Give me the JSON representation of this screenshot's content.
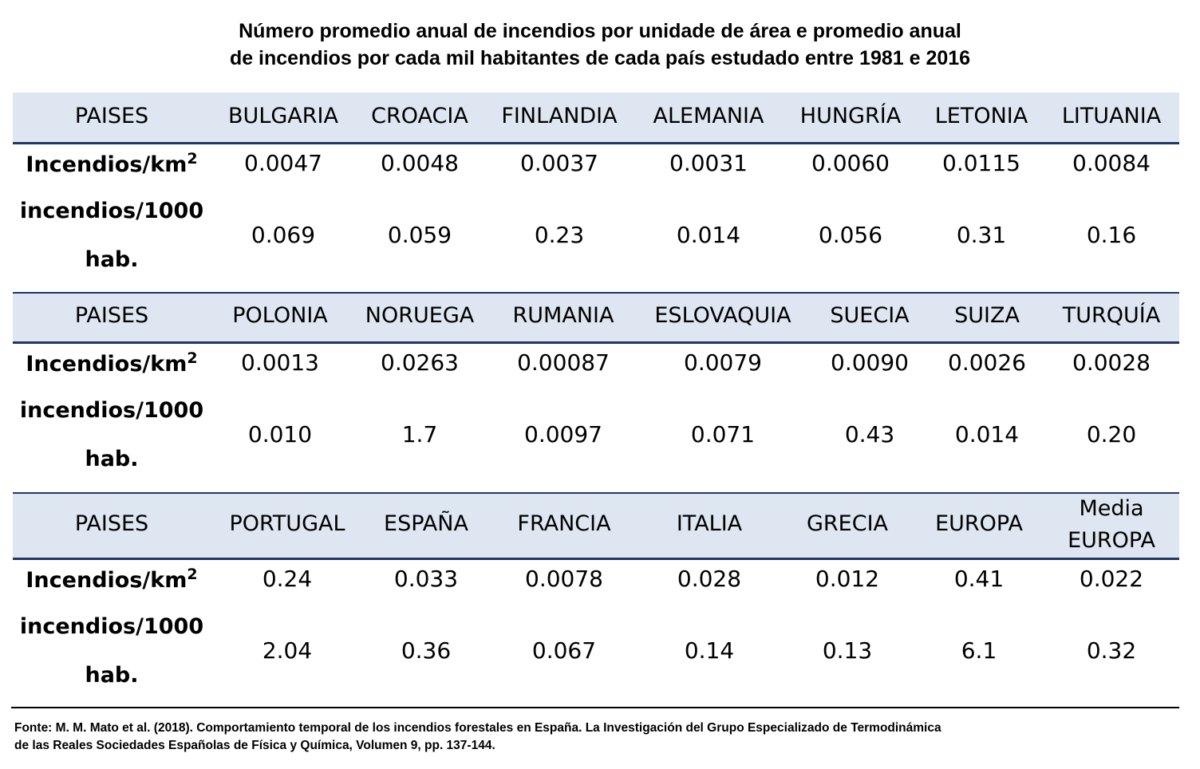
{
  "title": {
    "line1": "Número promedio anual de incendios por unidade de área e promedio anual",
    "line2": "de incendios por cada mil habitantes de cada país estudado entre 1981 e 2016"
  },
  "row_labels": {
    "header": "PAISES",
    "area_prefix": "Incendios/km",
    "area_sup": "2",
    "pop_line1": "incendios/1000",
    "pop_line2": "hab."
  },
  "blocks": [
    {
      "countries": [
        "BULGARIA",
        "CROACIA",
        "FINLANDIA",
        "ALEMANIA",
        "HUNGRÍA",
        "LETONIA",
        "LITUANIA"
      ],
      "per_km2": [
        "0.0047",
        "0.0048",
        "0.0037",
        "0.0031",
        "0.0060",
        "0.0115",
        "0.0084"
      ],
      "per_1000": [
        "0.069",
        "0.059",
        "0.23",
        "0.014",
        "0.056",
        "0.31",
        "0.16"
      ]
    },
    {
      "countries": [
        "POLONIA",
        "NORUEGA",
        "RUMANIA",
        "ESLOVAQUIA",
        "SUECIA",
        "SUIZA",
        "TURQUÍA"
      ],
      "per_km2": [
        "0.0013",
        "0.0263",
        "0.00087",
        "0.0079",
        "0.0090",
        "0.0026",
        "0.0028"
      ],
      "per_1000": [
        "0.010",
        "1.7",
        "0.0097",
        "0.071",
        "0.43",
        "0.014",
        "0.20"
      ]
    },
    {
      "countries": [
        "PORTUGAL",
        "ESPAÑA",
        "FRANCIA",
        "ITALIA",
        "GRECIA",
        "EUROPA",
        "Media EUROPA"
      ],
      "countries_last_split": [
        "Media",
        "EUROPA"
      ],
      "per_km2": [
        "0.24",
        "0.033",
        "0.0078",
        "0.028",
        "0.012",
        "0.41",
        "0.022"
      ],
      "per_1000": [
        "2.04",
        "0.36",
        "0.067",
        "0.14",
        "0.13",
        "6.1",
        "0.32"
      ]
    }
  ],
  "source": {
    "line1": "Fonte: M. M. Mato et al. (2018). Comportamiento temporal de los incendios forestales en España. La Investigación del Grupo Especializado de Termodinámica",
    "line2": "de las Reales Sociedades Españolas de Física y Química, Volumen 9, pp. 137-144."
  },
  "colors": {
    "header_fill": "#dde6f1",
    "rule": "#1f3763"
  }
}
